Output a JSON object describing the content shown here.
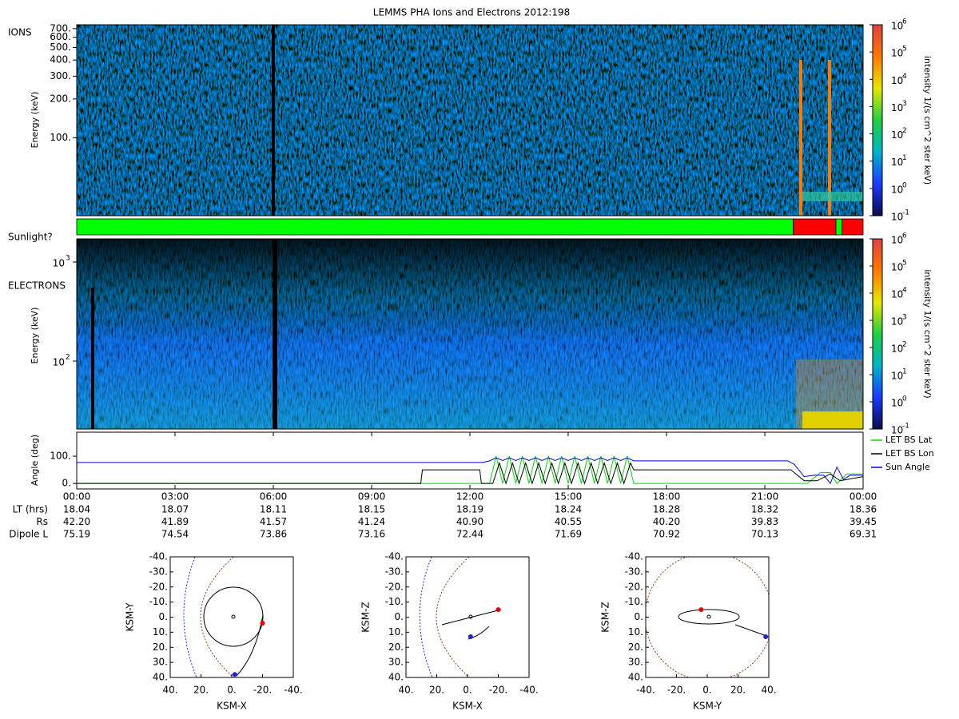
{
  "chart_data": {
    "type": "spectrogram",
    "title": "LEMMS PHA Ions and Electrons  2012:198",
    "xlim": [
      0,
      24
    ],
    "xticks": [
      {
        "value": 0,
        "label": "00:00"
      },
      {
        "value": 3,
        "label": "03:00"
      },
      {
        "value": 6,
        "label": "06:00"
      },
      {
        "value": 9,
        "label": "09:00"
      },
      {
        "value": 12,
        "label": "12:00"
      },
      {
        "value": 15,
        "label": "15:00"
      },
      {
        "value": 18,
        "label": "18:00"
      },
      {
        "value": 21,
        "label": "21:00"
      },
      {
        "value": 24,
        "label": "00:00"
      }
    ],
    "colorbar": {
      "label": "intensity 1/(s cm^2 ster keV)",
      "log": true,
      "clim": [
        0.1,
        1000000
      ],
      "colors": [
        "#0a0a50",
        "#1a3cff",
        "#00b4c8",
        "#20d040",
        "#e8e800",
        "#ff7800",
        "#e04040"
      ],
      "ticks": [
        {
          "value": 0.1,
          "label": "10",
          "exponent": -1
        },
        {
          "value": 1,
          "label": "10",
          "exponent": 0
        },
        {
          "value": 10,
          "label": "10",
          "exponent": 1
        },
        {
          "value": 100,
          "label": "10",
          "exponent": 2
        },
        {
          "value": 1000,
          "label": "10",
          "exponent": 3
        },
        {
          "value": 10000,
          "label": "10",
          "exponent": 4
        },
        {
          "value": 100000,
          "label": "10",
          "exponent": 5
        },
        {
          "value": 1000000,
          "label": "10",
          "exponent": 6
        }
      ]
    },
    "ions": {
      "label": "IONS",
      "ylabel": "Energy (keV)",
      "log": true,
      "ylim": [
        25,
        750
      ],
      "yticks": [
        {
          "value": 700,
          "label": "700."
        },
        {
          "value": 600,
          "label": "600."
        },
        {
          "value": 500,
          "label": "500."
        },
        {
          "value": 400,
          "label": "400."
        },
        {
          "value": 300,
          "label": "300."
        },
        {
          "value": 200,
          "label": "200."
        },
        {
          "value": 100,
          "label": "100."
        }
      ]
    },
    "sunlight": {
      "label": "Sunlight?",
      "segments": [
        {
          "start": 0,
          "end": 21.87,
          "color": "#00ff00"
        },
        {
          "start": 21.87,
          "end": 23.17,
          "color": "#ff0000"
        },
        {
          "start": 23.17,
          "end": 23.36,
          "color": "#00ff00"
        },
        {
          "start": 23.36,
          "end": 24,
          "color": "#ff0000"
        }
      ]
    },
    "electrons": {
      "label": "ELECTRONS",
      "ylabel": "Energy (keV)",
      "log": true,
      "ylim": [
        20.6,
        1714
      ],
      "yticks": [
        {
          "value": 100,
          "label": "10",
          "exponent": 2
        },
        {
          "value": 1000,
          "label": "10",
          "exponent": 3
        }
      ]
    },
    "angles": {
      "ylabel": "Angle (deg)",
      "ylim": [
        -20,
        188
      ],
      "yticks": [
        {
          "value": 0,
          "label": "0."
        },
        {
          "value": 100,
          "label": "100."
        }
      ],
      "series": [
        {
          "name": "LET BS Lat",
          "color": "#00dd00",
          "x": [
            0,
            12.6,
            12.8,
            13.0,
            13.2,
            13.4,
            13.6,
            13.8,
            14.0,
            14.2,
            14.4,
            14.6,
            14.8,
            15.0,
            15.2,
            15.4,
            15.6,
            15.8,
            16.0,
            16.2,
            16.4,
            16.6,
            16.8,
            17.0,
            22.3,
            22.7,
            23.0,
            23.2,
            23.5,
            24
          ],
          "values": [
            0,
            0,
            100,
            0,
            100,
            0,
            100,
            0,
            100,
            0,
            100,
            0,
            100,
            0,
            100,
            0,
            100,
            0,
            100,
            0,
            100,
            0,
            100,
            0,
            0,
            40,
            40,
            0,
            35,
            35
          ]
        },
        {
          "name": "LET BS Lon",
          "color": "#000000",
          "x": [
            0,
            10.5,
            10.55,
            12.3,
            12.35,
            12.7,
            12.9,
            13.1,
            13.3,
            13.5,
            13.7,
            13.9,
            14.1,
            14.3,
            14.5,
            14.7,
            14.9,
            15.1,
            15.3,
            15.5,
            15.7,
            15.9,
            16.1,
            16.3,
            16.5,
            16.7,
            16.9,
            17.0,
            21.8,
            22.2,
            22.6,
            23.0,
            23.3,
            24
          ],
          "values": [
            0,
            0,
            50,
            50,
            0,
            0,
            75,
            0,
            75,
            0,
            75,
            0,
            75,
            0,
            75,
            0,
            75,
            0,
            75,
            0,
            75,
            0,
            75,
            0,
            75,
            0,
            75,
            50,
            50,
            10,
            10,
            35,
            10,
            25
          ]
        },
        {
          "name": "Sun Angle",
          "color": "#0000dd",
          "x": [
            0,
            12.4,
            12.6,
            12.8,
            13.0,
            13.2,
            13.4,
            13.6,
            13.8,
            14.0,
            14.2,
            14.4,
            14.6,
            14.8,
            15.0,
            15.2,
            15.4,
            15.6,
            15.8,
            16.0,
            16.2,
            16.4,
            16.6,
            16.8,
            17.0,
            21.7,
            21.9,
            22.2,
            22.5,
            22.8,
            23.0,
            23.2,
            23.4,
            23.6,
            24
          ],
          "values": [
            77,
            77,
            83,
            94,
            84,
            94,
            84,
            94,
            84,
            94,
            84,
            94,
            84,
            94,
            84,
            94,
            84,
            94,
            84,
            94,
            84,
            94,
            84,
            94,
            83,
            83,
            70,
            25,
            30,
            30,
            0,
            60,
            15,
            30,
            30
          ]
        }
      ]
    },
    "ephemeris": [
      {
        "label": "LT (hrs)",
        "values": [
          "18.04",
          "18.07",
          "18.11",
          "18.15",
          "18.19",
          "18.24",
          "18.28",
          "18.32",
          "18.36"
        ]
      },
      {
        "label": "Rs",
        "values": [
          "42.20",
          "41.89",
          "41.57",
          "41.24",
          "40.90",
          "40.55",
          "40.20",
          "39.83",
          "39.45"
        ]
      },
      {
        "label": "Dipole L",
        "values": [
          "75.19",
          "74.54",
          "73.86",
          "73.16",
          "72.44",
          "71.69",
          "70.92",
          "70.13",
          "69.31"
        ]
      }
    ],
    "orbits": [
      {
        "xlabel": "KSM-X",
        "ylabel": "KSM-Y",
        "xlim": [
          40,
          -40
        ],
        "ylim": [
          40,
          -40
        ],
        "xticks": [
          {
            "value": 40,
            "label": "40."
          },
          {
            "value": 20,
            "label": "20."
          },
          {
            "value": 0,
            "label": "0."
          },
          {
            "value": -20,
            "label": "-20."
          },
          {
            "value": -40,
            "label": "-40."
          }
        ],
        "yticks": [
          {
            "value": -40,
            "label": "-40."
          },
          {
            "value": -30,
            "label": "-30."
          },
          {
            "value": -20,
            "label": "-20."
          },
          {
            "value": -10,
            "label": "-10."
          },
          {
            "value": 0,
            "label": "0."
          },
          {
            "value": 10,
            "label": "10."
          },
          {
            "value": 20,
            "label": "20."
          },
          {
            "value": 30,
            "label": "30."
          },
          {
            "value": 40,
            "label": "40."
          }
        ],
        "markers": [
          {
            "x": -20,
            "y": 4,
            "color": "#ee0000"
          },
          {
            "x": -2,
            "y": 38,
            "color": "#2020dd"
          }
        ]
      },
      {
        "xlabel": "KSM-X",
        "ylabel": "KSM-Z",
        "xlim": [
          40,
          -40
        ],
        "ylim": [
          40,
          -40
        ],
        "xticks": [
          {
            "value": 40,
            "label": "40."
          },
          {
            "value": 20,
            "label": "20."
          },
          {
            "value": 0,
            "label": "0."
          },
          {
            "value": -20,
            "label": "-20."
          },
          {
            "value": -40,
            "label": "-40."
          }
        ],
        "yticks": [
          {
            "value": -40,
            "label": "-40."
          },
          {
            "value": -30,
            "label": "-30."
          },
          {
            "value": -20,
            "label": "-20."
          },
          {
            "value": -10,
            "label": "-10."
          },
          {
            "value": 0,
            "label": "0."
          },
          {
            "value": 10,
            "label": "10."
          },
          {
            "value": 20,
            "label": "20."
          },
          {
            "value": 30,
            "label": "30."
          },
          {
            "value": 40,
            "label": "40."
          }
        ],
        "markers": [
          {
            "x": -20,
            "y": -5,
            "color": "#ee0000"
          },
          {
            "x": -2,
            "y": 13,
            "color": "#2020dd"
          }
        ]
      },
      {
        "xlabel": "KSM-Y",
        "ylabel": "KSM-Z",
        "xlim": [
          -40,
          40
        ],
        "ylim": [
          40,
          -40
        ],
        "xticks": [
          {
            "value": -40,
            "label": "-40."
          },
          {
            "value": -20,
            "label": "-20."
          },
          {
            "value": 0,
            "label": "0."
          },
          {
            "value": 20,
            "label": "20."
          },
          {
            "value": 40,
            "label": "40."
          }
        ],
        "yticks": [
          {
            "value": -40,
            "label": "-40."
          },
          {
            "value": -30,
            "label": "-30."
          },
          {
            "value": -20,
            "label": "-20."
          },
          {
            "value": -10,
            "label": "-10."
          },
          {
            "value": 0,
            "label": "0."
          },
          {
            "value": 10,
            "label": "10."
          },
          {
            "value": 20,
            "label": "20."
          },
          {
            "value": 30,
            "label": "30."
          },
          {
            "value": 40,
            "label": "40."
          }
        ],
        "markers": [
          {
            "x": -4,
            "y": -5,
            "color": "#ee0000"
          },
          {
            "x": 38,
            "y": 13,
            "color": "#2020dd"
          }
        ]
      }
    ]
  }
}
